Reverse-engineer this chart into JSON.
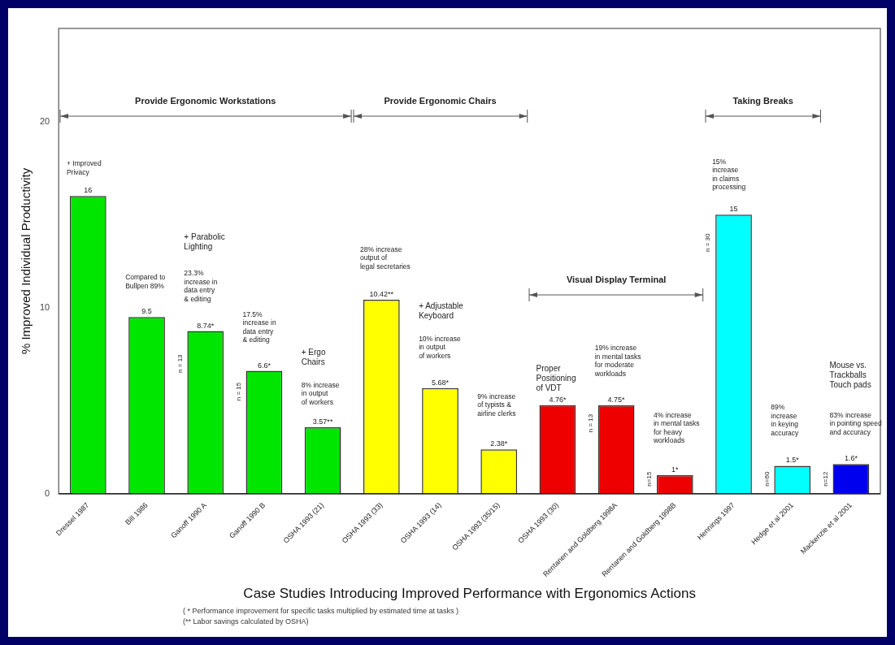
{
  "chart_data": {
    "type": "bar",
    "xlabel": "Case Studies Introducing Improved Performance with Ergonomics Actions",
    "ylabel": "% Improved Individual Productivity",
    "categories": [
      "Dressel 1987",
      "Bill 1986",
      "Ganoff 1990 A",
      "Ganoff 1990 B",
      "OSHA 1993 (21)",
      "OSHA 1993 (33)",
      "OSHA 1993 (14)",
      "OSHA 1993 (35/15)",
      "OSHA 1993 (30)",
      "Rentanen and Goldberg 1998A",
      "Rentanen and Goldberg 1998B",
      "Hennings 1997",
      "Hedge et al 2001",
      "Mackenzie et al 2001"
    ],
    "values": [
      16,
      9.5,
      8.74,
      6.6,
      3.57,
      10.42,
      5.68,
      2.38,
      4.76,
      4.75,
      1,
      15,
      1.5,
      1.6
    ],
    "value_labels": [
      "16",
      "9.5",
      "8.74*",
      "6.6*",
      "3.57**",
      "10.42**",
      "5.68*",
      "2.38*",
      "4.76*",
      "4.75*",
      "1*",
      "15",
      "1.5*",
      "1.6*"
    ],
    "colors": [
      "#00e600",
      "#00e600",
      "#00e600",
      "#00e600",
      "#00e600",
      "#ffff00",
      "#ffff00",
      "#ffff00",
      "#ee0000",
      "#ee0000",
      "#ee0000",
      "#00ffff",
      "#00ffff",
      "#0000ee"
    ],
    "ylim": [
      0,
      25
    ],
    "yticks": [
      0,
      10,
      20
    ],
    "grid": false,
    "legend": false,
    "annotations": [
      "Provide Ergonomic Workstations",
      "Provide Ergonomic Chairs",
      "Visual Display Terminal",
      "Taking Breaks",
      "+ Improved\nPrivacy",
      "Compared to\nBullpen 89%",
      "+ Parabolic\nLighting",
      "23.3%\nincrease in\ndata entry\n& editing",
      "n = 13",
      "17.5%\nincrease in\ndata entry\n& editing",
      "n = 15",
      "+ Ergo\nChairs",
      "8% increase\nin output\nof workers",
      "28% increase\noutput of\nlegal secretaries",
      "+ Adjustable\nKeyboard",
      "10% increase\nin output\nof workers",
      "9% increase\nof typists &\nairline clerks",
      "Proper\nPositioning\nof VDT",
      "19% increase\nin mental tasks\nfor moderate\nworkloads",
      "n = 13",
      "4% increase\nin mental tasks\nfor heavy\nworkloads",
      "n=15",
      "15%\nincrease\nin claims\nprocessing",
      "n = 30",
      "89%\nincrease\nin keying\naccuracy",
      "n=60",
      "Mouse vs.\nTrackballs\nTouch pads",
      "83% increase\nin pointing speed\nand accuracy",
      "n=12",
      "( * Performance improvement for specific tasks multiplied by estimated time at tasks )",
      "(** Labor savings calculated by OSHA)"
    ]
  }
}
